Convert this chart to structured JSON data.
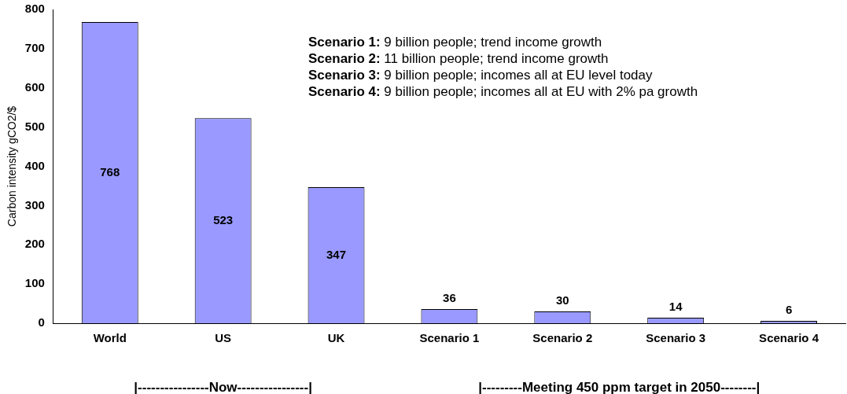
{
  "chart_data": {
    "type": "bar",
    "ylabel": "Carbon intensity gCO2/$",
    "categories": [
      "World",
      "US",
      "UK",
      "Scenario 1",
      "Scenario 2",
      "Scenario 3",
      "Scenario 4"
    ],
    "values": [
      768,
      523,
      347,
      36,
      30,
      14,
      6
    ],
    "color": "#9999ff",
    "ylim": [
      0,
      800
    ],
    "yticks": [
      0,
      100,
      200,
      300,
      400,
      500,
      600,
      700,
      800
    ],
    "grid": false,
    "legend": false,
    "data_labels": true,
    "annotations": [
      "Scenario 1: 9 billion people; trend income growth",
      "Scenario 2: 11 billion people; trend income growth",
      "Scenario 3: 9 billion people; incomes all at EU level today",
      "Scenario 4: 9 billion people; incomes all at EU with 2% pa growth",
      "|----------------Now----------------|",
      "|---------Meeting 450 ppm target in 2050--------|"
    ]
  }
}
